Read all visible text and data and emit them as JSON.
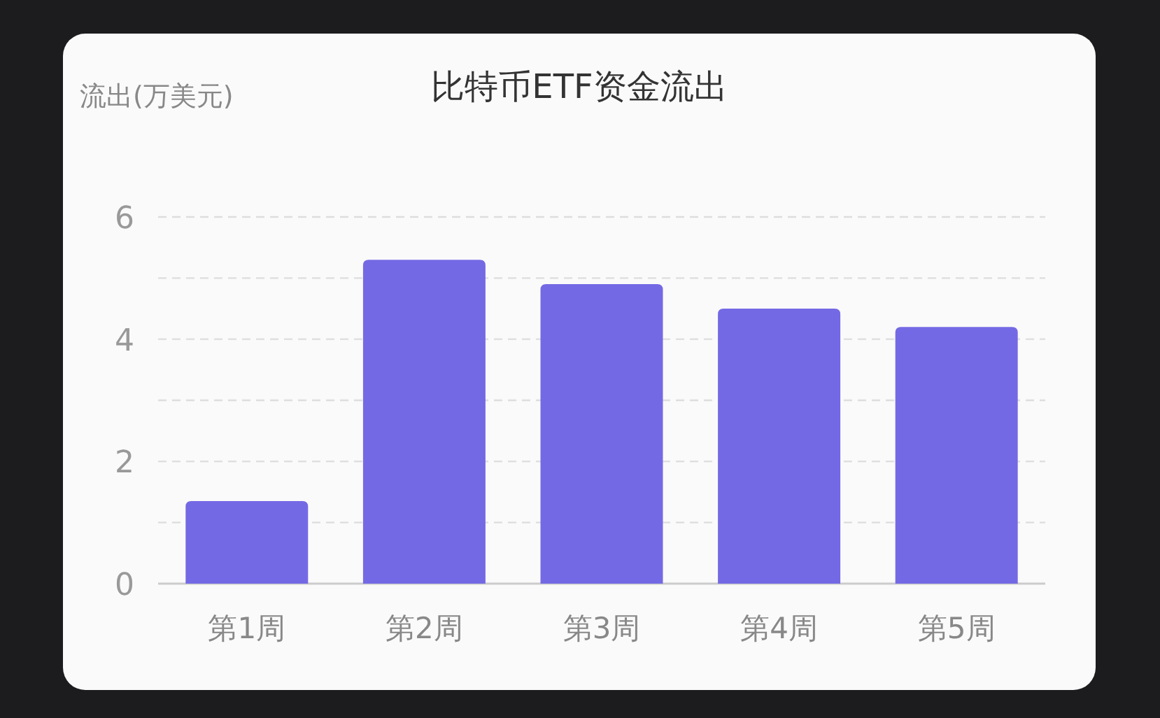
{
  "chart_data": {
    "type": "bar",
    "title": "比特币ETF资金流出",
    "ylabel": "流出(万美元)",
    "categories": [
      "第1周",
      "第2周",
      "第3周",
      "第4周",
      "第5周"
    ],
    "values": [
      1.35,
      5.3,
      4.9,
      4.5,
      4.2
    ],
    "color": "#7469e4",
    "ylim": [
      0,
      6
    ],
    "yticks": [
      0,
      {
        "value": 1,
        "label": null
      },
      2,
      {
        "value": 3,
        "label": null
      },
      4,
      {
        "value": 5,
        "label": null
      },
      6
    ],
    "grid": "y"
  }
}
